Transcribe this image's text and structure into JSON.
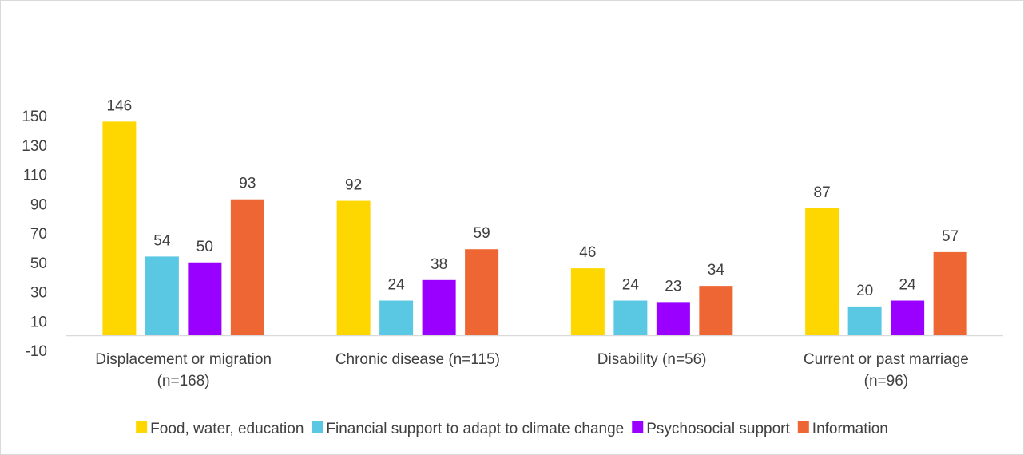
{
  "chart_data": {
    "type": "bar",
    "categories": [
      [
        "Displacement or migration",
        "(n=168)"
      ],
      [
        "Chronic disease (n=115)"
      ],
      [
        "Disability (n=56)"
      ],
      [
        "Current or past marriage",
        "(n=96)"
      ]
    ],
    "series": [
      {
        "name": "Food, water, education",
        "color": "#FFD700",
        "values": [
          146,
          92,
          46,
          87
        ]
      },
      {
        "name": "Financial support to adapt to climate change",
        "color": "#5BC8E3",
        "values": [
          54,
          24,
          24,
          20
        ]
      },
      {
        "name": "Psychosocial support",
        "color": "#9900FF",
        "values": [
          50,
          38,
          23,
          24
        ]
      },
      {
        "name": "Information",
        "color": "#EE6633",
        "values": [
          93,
          59,
          34,
          57
        ]
      }
    ],
    "yticks": [
      -10,
      10,
      30,
      50,
      70,
      90,
      110,
      130,
      150
    ],
    "ylim": [
      -10,
      150
    ],
    "baseline": 0,
    "grid": false,
    "legend": "bottom",
    "title": "",
    "xlabel": "",
    "ylabel": ""
  }
}
